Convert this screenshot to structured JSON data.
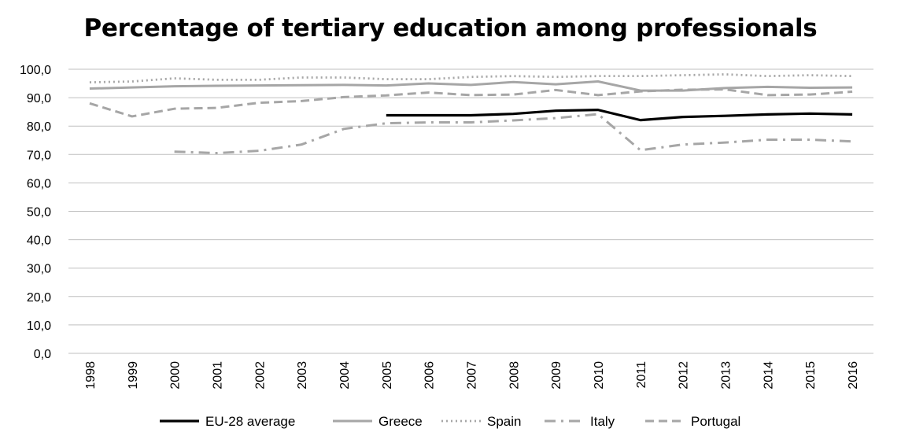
{
  "chart_data": {
    "type": "line",
    "title": "Percentage of tertiary education among professionals",
    "xlabel": "",
    "ylabel": "",
    "ylim": [
      0,
      100
    ],
    "ytick_step": 10,
    "ytick_labels": [
      "0,0",
      "10,0",
      "20,0",
      "30,0",
      "40,0",
      "50,0",
      "60,0",
      "70,0",
      "80,0",
      "90,0",
      "100,0"
    ],
    "grid": "horizontal",
    "legend_position": "bottom",
    "categories": [
      "1998",
      "1999",
      "2000",
      "2001",
      "2002",
      "2003",
      "2004",
      "2005",
      "2006",
      "2007",
      "2008",
      "2009",
      "2010",
      "2011",
      "2012",
      "2013",
      "2014",
      "2015",
      "2016"
    ],
    "series": [
      {
        "name": "EU-28 average",
        "color": "#000000",
        "style": "solid-thick",
        "values": [
          null,
          null,
          null,
          null,
          null,
          null,
          null,
          83.8,
          83.8,
          83.8,
          84.3,
          85.4,
          85.7,
          82.1,
          83.2,
          83.6,
          84.1,
          84.4,
          84.1
        ]
      },
      {
        "name": "Greece",
        "color": "#a6a6a6",
        "style": "solid",
        "values": [
          93.2,
          93.6,
          94.0,
          94.2,
          94.3,
          94.4,
          94.5,
          94.3,
          95.0,
          94.5,
          95.5,
          94.7,
          95.7,
          92.5,
          92.5,
          93.4,
          93.8,
          93.5,
          93.6
        ]
      },
      {
        "name": "Spain",
        "color": "#a6a6a6",
        "style": "dotted",
        "values": [
          95.4,
          95.7,
          96.8,
          96.3,
          96.3,
          97.1,
          97.1,
          96.5,
          96.5,
          97.3,
          97.6,
          97.3,
          97.6,
          97.6,
          97.9,
          98.2,
          97.6,
          97.9,
          97.6
        ]
      },
      {
        "name": "Italy",
        "color": "#a6a6a6",
        "style": "dash-dot",
        "values": [
          null,
          null,
          71.0,
          70.5,
          71.3,
          73.5,
          79.0,
          81.0,
          81.3,
          81.3,
          82.0,
          82.8,
          84.2,
          71.5,
          73.5,
          74.2,
          75.2,
          75.2,
          74.6
        ]
      },
      {
        "name": "Portugal",
        "color": "#a6a6a6",
        "style": "dashed",
        "values": [
          88.0,
          83.4,
          86.1,
          86.4,
          88.2,
          88.8,
          90.2,
          90.8,
          91.8,
          90.9,
          91.1,
          92.7,
          90.9,
          92.2,
          92.8,
          92.9,
          90.9,
          91.1,
          92.1
        ]
      }
    ]
  }
}
